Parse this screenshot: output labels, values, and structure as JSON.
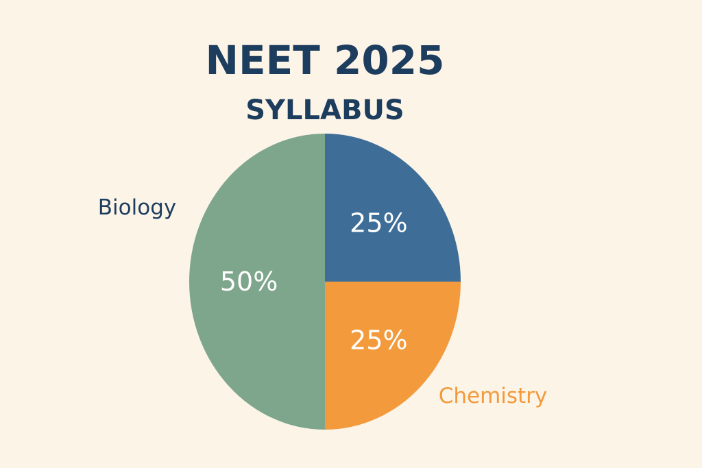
{
  "colors": {
    "background": "#fcf4e6",
    "title": "#1d3d5e",
    "slice_label": "#ffffff"
  },
  "chart_data": {
    "type": "pie",
    "title": "NEET 2025",
    "subtitle": "SYLLABUS",
    "start_angle_deg": 0,
    "direction": "clockwise",
    "slices": [
      {
        "label": "",
        "value": 25,
        "value_label": "25%",
        "color": "#3e6e97"
      },
      {
        "label": "Chemistry",
        "value": 25,
        "value_label": "25%",
        "color": "#f29a3c",
        "label_color": "#f29a3c"
      },
      {
        "label": "Biology",
        "value": 50,
        "value_label": "50%",
        "color": "#7ea68c",
        "label_color": "#1d3d5e"
      }
    ]
  }
}
